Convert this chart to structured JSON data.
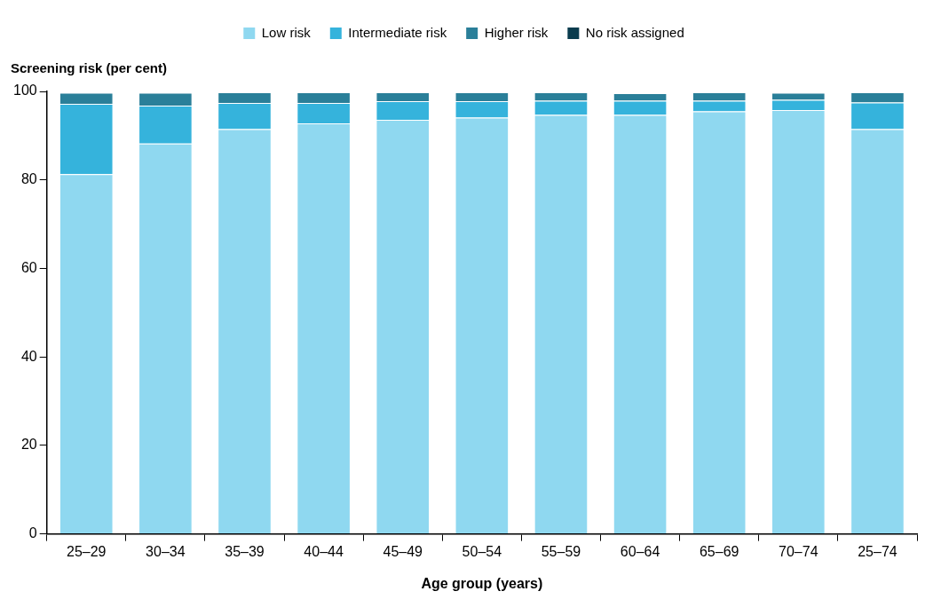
{
  "chart_data": {
    "type": "bar",
    "stacked": true,
    "xlabel": "Age group (years)",
    "ylabel": "Screening risk (per cent)",
    "categories": [
      "25–29",
      "30–34",
      "35–39",
      "40–44",
      "45–49",
      "50–54",
      "55–59",
      "60–64",
      "65–69",
      "70–74",
      "25–74"
    ],
    "series": [
      {
        "name": "Low risk",
        "color": "#8fd8f0",
        "values": [
          81.3,
          88.2,
          91.5,
          92.8,
          93.6,
          94.1,
          94.7,
          94.7,
          95.5,
          95.8,
          91.5
        ]
      },
      {
        "name": "Intermediate risk",
        "color": "#35b3dc",
        "values": [
          15.9,
          8.6,
          5.9,
          4.6,
          4.2,
          3.7,
          3.2,
          3.2,
          2.4,
          2.3,
          6.0
        ]
      },
      {
        "name": "Higher risk",
        "color": "#2a7f99",
        "values": [
          2.5,
          2.9,
          2.4,
          2.4,
          2.0,
          2.0,
          1.9,
          1.7,
          1.9,
          1.6,
          2.3
        ]
      },
      {
        "name": "No risk assigned",
        "color": "#0a3c4e",
        "values": [
          null,
          null,
          null,
          null,
          null,
          null,
          null,
          null,
          null,
          null,
          null
        ]
      }
    ],
    "ylim": [
      0,
      100
    ],
    "yticks": [
      0,
      20,
      40,
      60,
      80,
      100
    ],
    "grid": false,
    "legend": "top"
  }
}
